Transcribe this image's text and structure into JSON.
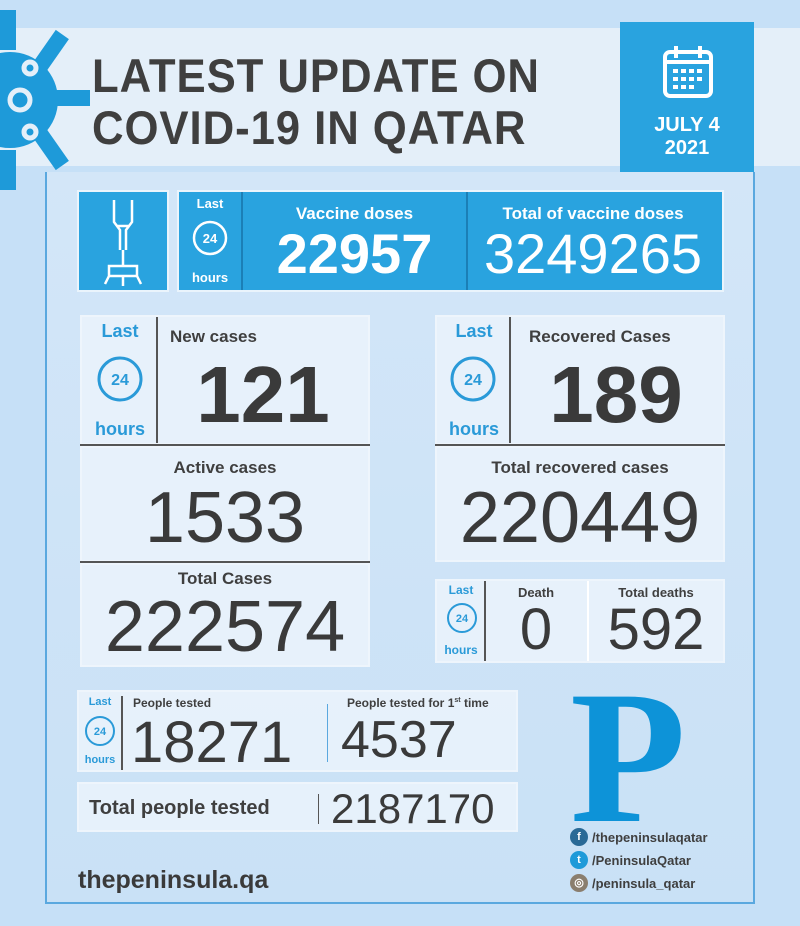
{
  "header": {
    "title_line1": "LATEST UPDATE ON",
    "title_line2": "COVID-19 IN QATAR",
    "date_line1": "JULY 4",
    "date_line2": "2021"
  },
  "last24": {
    "last": "Last",
    "num": "24",
    "hours": "hours"
  },
  "vaccine": {
    "doses_label": "Vaccine doses",
    "doses": "22957",
    "total_label": "Total of vaccine doses",
    "total": "3249265"
  },
  "cases": {
    "new_label": "New cases",
    "new": "121",
    "active_label": "Active cases",
    "active": "1533",
    "total_label": "Total Cases",
    "total": "222574"
  },
  "recovered": {
    "label": "Recovered Cases",
    "value": "189",
    "total_label": "Total recovered cases",
    "total": "220449"
  },
  "deaths": {
    "label": "Death",
    "value": "0",
    "total_label": "Total deaths",
    "total": "592"
  },
  "tests": {
    "tested_label": "People tested",
    "tested": "18271",
    "first_label": "People tested for 1",
    "first_sup": "st",
    "first_suffix": " time",
    "first": "4537",
    "total_label": "Total people tested",
    "total": "2187170"
  },
  "brand": {
    "logo": "P",
    "site": "thepeninsula.qa",
    "facebook": "/thepeninsulaqatar",
    "twitter": "/PeninsulaQatar",
    "instagram": "/peninsula_qatar"
  },
  "colors": {
    "accent": "#29a3df",
    "background": "#c6e0f7",
    "text": "#3f3f3f"
  }
}
